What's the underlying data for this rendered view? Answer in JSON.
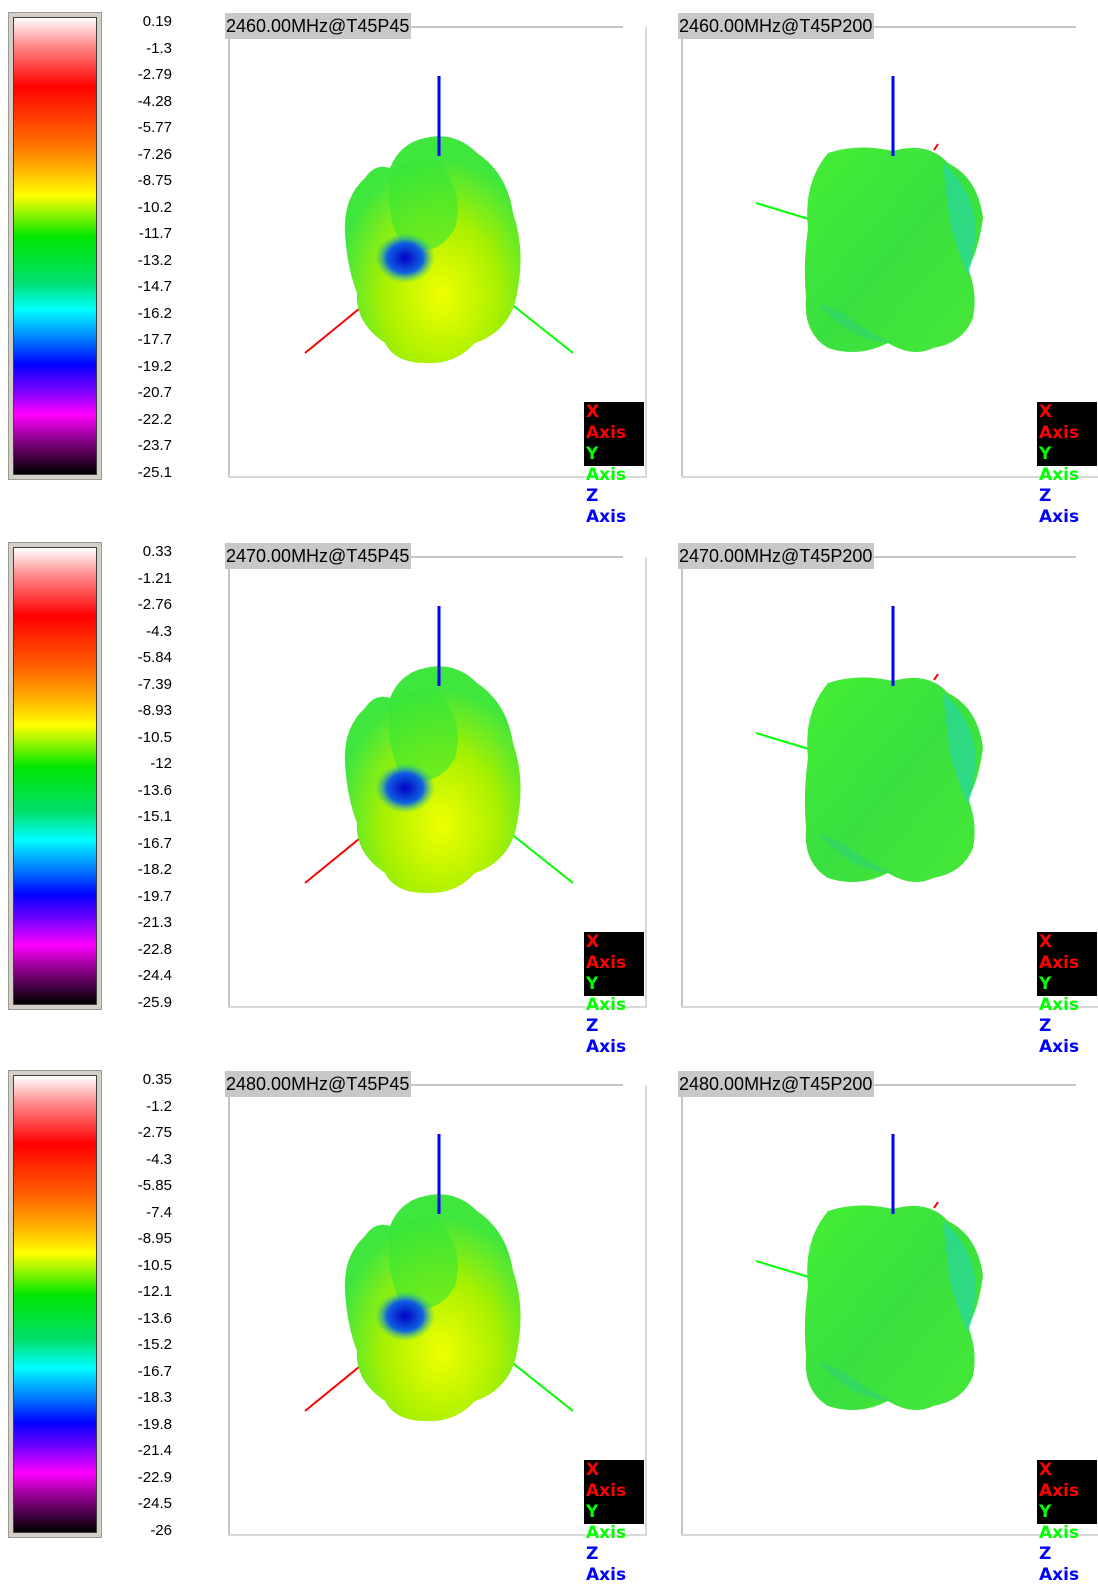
{
  "rows": [
    {
      "scale_ticks": [
        "0.19",
        "-1.3",
        "-2.79",
        "-4.28",
        "-5.77",
        "-7.26",
        "-8.75",
        "-10.2",
        "-11.7",
        "-13.2",
        "-14.7",
        "-16.2",
        "-17.7",
        "-19.2",
        "-20.7",
        "-22.2",
        "-23.7",
        "-25.1"
      ],
      "panels": [
        {
          "title": "2460.00MHz@T45P45"
        },
        {
          "title": "2460.00MHz@T45P200"
        }
      ]
    },
    {
      "scale_ticks": [
        "0.33",
        "-1.21",
        "-2.76",
        "-4.3",
        "-5.84",
        "-7.39",
        "-8.93",
        "-10.5",
        "-12",
        "-13.6",
        "-15.1",
        "-16.7",
        "-18.2",
        "-19.7",
        "-21.3",
        "-22.8",
        "-24.4",
        "-25.9"
      ],
      "panels": [
        {
          "title": "2470.00MHz@T45P45"
        },
        {
          "title": "2470.00MHz@T45P200"
        }
      ]
    },
    {
      "scale_ticks": [
        "0.35",
        "-1.2",
        "-2.75",
        "-4.3",
        "-5.85",
        "-7.4",
        "-8.95",
        "-10.5",
        "-12.1",
        "-13.6",
        "-15.2",
        "-16.7",
        "-18.3",
        "-19.8",
        "-21.4",
        "-22.9",
        "-24.5",
        "-26"
      ],
      "panels": [
        {
          "title": "2480.00MHz@T45P45"
        },
        {
          "title": "2480.00MHz@T45P200"
        }
      ]
    }
  ],
  "legend": {
    "x": "X Axis",
    "y": "Y Axis",
    "z": "Z Axis"
  },
  "colors": {
    "x_axis": "#ff0000",
    "y_axis": "#00ff00",
    "z_axis": "#0000ff",
    "pattern": "#33e633",
    "pattern_hot": "#e6ff00",
    "null": "#0000cc"
  },
  "chart_data": {
    "type": "3d-radiation-pattern",
    "series": [
      {
        "frequency_mhz": 2460,
        "scale_max": 0.19,
        "scale_min": -25.1
      },
      {
        "frequency_mhz": 2470,
        "scale_max": 0.33,
        "scale_min": -25.9
      },
      {
        "frequency_mhz": 2480,
        "scale_max": 0.35,
        "scale_min": -26
      }
    ]
  }
}
